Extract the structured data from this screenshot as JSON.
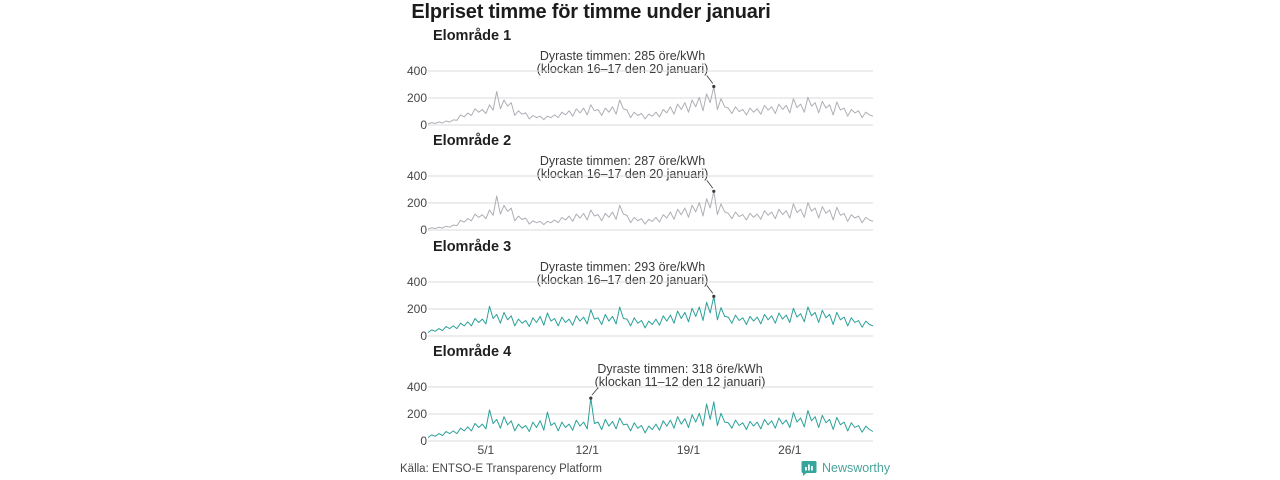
{
  "title": "Elpriset timme för timme under januari",
  "source": "Källa: ENTSO-E Transparency Platform",
  "brand": {
    "name": "Newsworthy",
    "color": "#35a49b"
  },
  "colors": {
    "grid": "#dbdbdb",
    "annotation": "#3c3c3c",
    "gray_line": "#aeafb6",
    "teal_line": "#2ba199"
  },
  "chart_data": {
    "type": "line",
    "small_multiples": true,
    "title": "Elpriset timme för timme under januari",
    "y_unit": "öre/kWh",
    "x_unit": "dag i januari (ca 4 mätpunkter per dag, timpriser)",
    "ylim": [
      0,
      450
    ],
    "yticks": [
      400,
      200,
      0
    ],
    "ytick_labels": [
      "400",
      "200",
      "0"
    ],
    "xtick_days": [
      5,
      12,
      19,
      26
    ],
    "xtick_labels": [
      "5/1",
      "12/1",
      "19/1",
      "26/1"
    ],
    "grid": true,
    "series": [
      {
        "name": "Elområde 1",
        "color": "#aeafb6",
        "peak_value": 285,
        "annotation": {
          "line1": "Dyraste timmen: 285 öre/kWh",
          "line2": "(klockan 16–17 den 20 januari)"
        },
        "pointer_dx": -7,
        "pointer_dy": -11,
        "values": [
          8,
          18,
          12,
          22,
          15,
          30,
          22,
          38,
          35,
          75,
          60,
          88,
          70,
          120,
          95,
          115,
          85,
          150,
          110,
          248,
          120,
          185,
          140,
          165,
          70,
          105,
          80,
          90,
          45,
          70,
          55,
          65,
          40,
          65,
          55,
          75,
          55,
          95,
          75,
          105,
          65,
          120,
          90,
          125,
          75,
          150,
          105,
          115,
          70,
          125,
          95,
          135,
          80,
          185,
          120,
          110,
          55,
          95,
          70,
          85,
          45,
          80,
          65,
          95,
          60,
          115,
          90,
          135,
          80,
          155,
          115,
          165,
          95,
          185,
          135,
          205,
          105,
          230,
          165,
          285,
          115,
          195,
          135,
          125,
          85,
          135,
          100,
          115,
          75,
          125,
          95,
          120,
          80,
          145,
          110,
          135,
          85,
          155,
          115,
          145,
          90,
          195,
          130,
          155,
          95,
          205,
          140,
          165,
          90,
          175,
          125,
          150,
          75,
          170,
          110,
          125,
          65,
          115,
          90,
          105,
          55,
          95,
          75,
          65
        ]
      },
      {
        "name": "Elområde 2",
        "color": "#aeafb6",
        "peak_value": 287,
        "annotation": {
          "line1": "Dyraste timmen: 287 öre/kWh",
          "line2": "(klockan 16–17 den 20 januari)"
        },
        "pointer_dx": -7,
        "pointer_dy": -11,
        "values": [
          6,
          16,
          11,
          20,
          14,
          28,
          21,
          36,
          33,
          72,
          58,
          85,
          68,
          118,
          93,
          113,
          84,
          148,
          108,
          252,
          118,
          182,
          138,
          162,
          68,
          103,
          78,
          88,
          44,
          68,
          54,
          64,
          40,
          64,
          54,
          74,
          54,
          93,
          74,
          103,
          64,
          118,
          89,
          123,
          74,
          148,
          104,
          114,
          69,
          123,
          94,
          133,
          79,
          183,
          118,
          108,
          54,
          93,
          69,
          84,
          44,
          79,
          64,
          93,
          59,
          113,
          89,
          133,
          79,
          153,
          113,
          163,
          94,
          183,
          134,
          203,
          104,
          232,
          164,
          287,
          114,
          193,
          134,
          124,
          84,
          133,
          99,
          114,
          74,
          123,
          94,
          118,
          79,
          143,
          109,
          133,
          84,
          153,
          114,
          143,
          89,
          193,
          129,
          153,
          94,
          203,
          139,
          163,
          89,
          173,
          124,
          148,
          74,
          168,
          109,
          123,
          64,
          113,
          89,
          103,
          54,
          93,
          74,
          64
        ]
      },
      {
        "name": "Elområde 3",
        "color": "#2ba199",
        "peak_value": 293,
        "annotation": {
          "line1": "Dyraste timmen: 293 öre/kWh",
          "line2": "(klockan 16–17 den 20 januari)"
        },
        "pointer_dx": -7,
        "pointer_dy": -11,
        "values": [
          25,
          45,
          35,
          55,
          40,
          70,
          55,
          75,
          55,
          95,
          75,
          105,
          75,
          130,
          100,
          125,
          90,
          220,
          130,
          160,
          95,
          175,
          120,
          150,
          75,
          125,
          95,
          115,
          70,
          135,
          100,
          145,
          80,
          170,
          110,
          130,
          75,
          140,
          100,
          125,
          80,
          150,
          110,
          140,
          90,
          195,
          125,
          135,
          85,
          160,
          110,
          145,
          90,
          215,
          130,
          125,
          75,
          135,
          95,
          115,
          60,
          110,
          85,
          125,
          80,
          150,
          110,
          155,
          95,
          185,
          130,
          175,
          105,
          205,
          145,
          215,
          115,
          250,
          170,
          293,
          120,
          210,
          145,
          140,
          95,
          155,
          115,
          135,
          85,
          145,
          110,
          140,
          90,
          160,
          120,
          150,
          95,
          170,
          125,
          155,
          100,
          205,
          140,
          165,
          105,
          215,
          150,
          175,
          100,
          190,
          135,
          160,
          85,
          175,
          120,
          140,
          75,
          135,
          100,
          115,
          65,
          110,
          85,
          75
        ]
      },
      {
        "name": "Elområde 4",
        "color": "#2ba199",
        "peak_value": 318,
        "annotation": {
          "line1": "Dyraste timmen: 318 öre/kWh",
          "line2": "(klockan 11–12 den 12 januari)"
        },
        "pointer_dx": 7,
        "pointer_dy": -10,
        "values": [
          25,
          45,
          35,
          55,
          40,
          70,
          55,
          75,
          55,
          95,
          75,
          105,
          75,
          130,
          100,
          125,
          90,
          230,
          130,
          160,
          95,
          180,
          120,
          150,
          75,
          125,
          95,
          115,
          70,
          140,
          100,
          150,
          80,
          215,
          115,
          135,
          75,
          140,
          100,
          125,
          80,
          155,
          110,
          140,
          90,
          318,
          130,
          140,
          85,
          160,
          110,
          145,
          90,
          170,
          120,
          125,
          75,
          135,
          95,
          115,
          60,
          110,
          85,
          125,
          80,
          150,
          110,
          155,
          95,
          180,
          125,
          165,
          100,
          195,
          140,
          205,
          110,
          275,
          160,
          290,
          115,
          205,
          140,
          135,
          95,
          155,
          115,
          135,
          85,
          145,
          110,
          140,
          90,
          160,
          120,
          150,
          95,
          170,
          125,
          155,
          100,
          210,
          140,
          170,
          105,
          225,
          150,
          180,
          100,
          190,
          135,
          160,
          85,
          175,
          120,
          140,
          75,
          135,
          100,
          115,
          65,
          110,
          85,
          70
        ]
      }
    ]
  }
}
